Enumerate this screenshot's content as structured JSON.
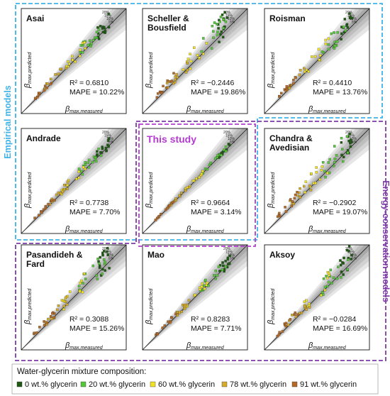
{
  "groups": {
    "empirical": {
      "label": "Empirical models",
      "color": "#3fb3e8"
    },
    "energy": {
      "label": "Energy-conservation models",
      "color": "#7f3aa8"
    }
  },
  "axes": {
    "x_label_base": "β",
    "x_label_sub": "max,measured",
    "y_label_base": "β",
    "y_label_sub": "max,predicted"
  },
  "bands": [
    "20%",
    "15%",
    "10%",
    "5%"
  ],
  "legend": {
    "title": "Water-glycerin mixture composition:",
    "items": [
      {
        "label": "0 wt.% glycerin",
        "color": "#1e5a12"
      },
      {
        "label": "20 wt.% glycerin",
        "color": "#56c63a"
      },
      {
        "label": "60 wt.% glycerin",
        "color": "#f2e227"
      },
      {
        "label": "78 wt.% glycerin",
        "color": "#d4ac2a"
      },
      {
        "label": "91 wt.% glycerin",
        "color": "#b46a26"
      }
    ]
  },
  "chart_data": [
    {
      "type": "scatter",
      "title": "Asai",
      "r2": "R² = 0.6810",
      "mape": "MAPE = 10.22%",
      "group": "empirical",
      "highlight": false
    },
    {
      "type": "scatter",
      "title": "Scheller & Bousfield",
      "title_lines": [
        "Scheller &",
        "Bousfield"
      ],
      "r2": "R² = −0.2446",
      "mape": "MAPE = 19.86%",
      "group": "empirical",
      "highlight": false
    },
    {
      "type": "scatter",
      "title": "Roisman",
      "r2": "R² = 0.4410",
      "mape": "MAPE = 13.76%",
      "group": "empirical",
      "highlight": false
    },
    {
      "type": "scatter",
      "title": "Andrade",
      "r2": "R² = 0.7738",
      "mape": "MAPE = 7.70%",
      "group": "empirical",
      "highlight": false
    },
    {
      "type": "scatter",
      "title": "This study",
      "r2": "R² = 0.9664",
      "mape": "MAPE = 3.14%",
      "group": "both",
      "highlight": true
    },
    {
      "type": "scatter",
      "title": "Chandra & Avedisian",
      "title_lines": [
        "Chandra &",
        "Avedisian"
      ],
      "r2": "R² = −0.2902",
      "mape": "MAPE = 19.07%",
      "group": "energy",
      "highlight": false
    },
    {
      "type": "scatter",
      "title": "Pasandideh & Fard",
      "title_lines": [
        "Pasandideh &",
        "Fard"
      ],
      "r2": "R² = 0.3088",
      "mape": "MAPE = 15.26%",
      "group": "energy",
      "highlight": false
    },
    {
      "type": "scatter",
      "title": "Mao",
      "r2": "R² = 0.8283",
      "mape": "MAPE = 7.71%",
      "group": "energy",
      "highlight": false
    },
    {
      "type": "scatter",
      "title": "Aksoy",
      "r2": "R² = −0.0284",
      "mape": "MAPE = 16.69%",
      "group": "energy",
      "highlight": false
    }
  ]
}
